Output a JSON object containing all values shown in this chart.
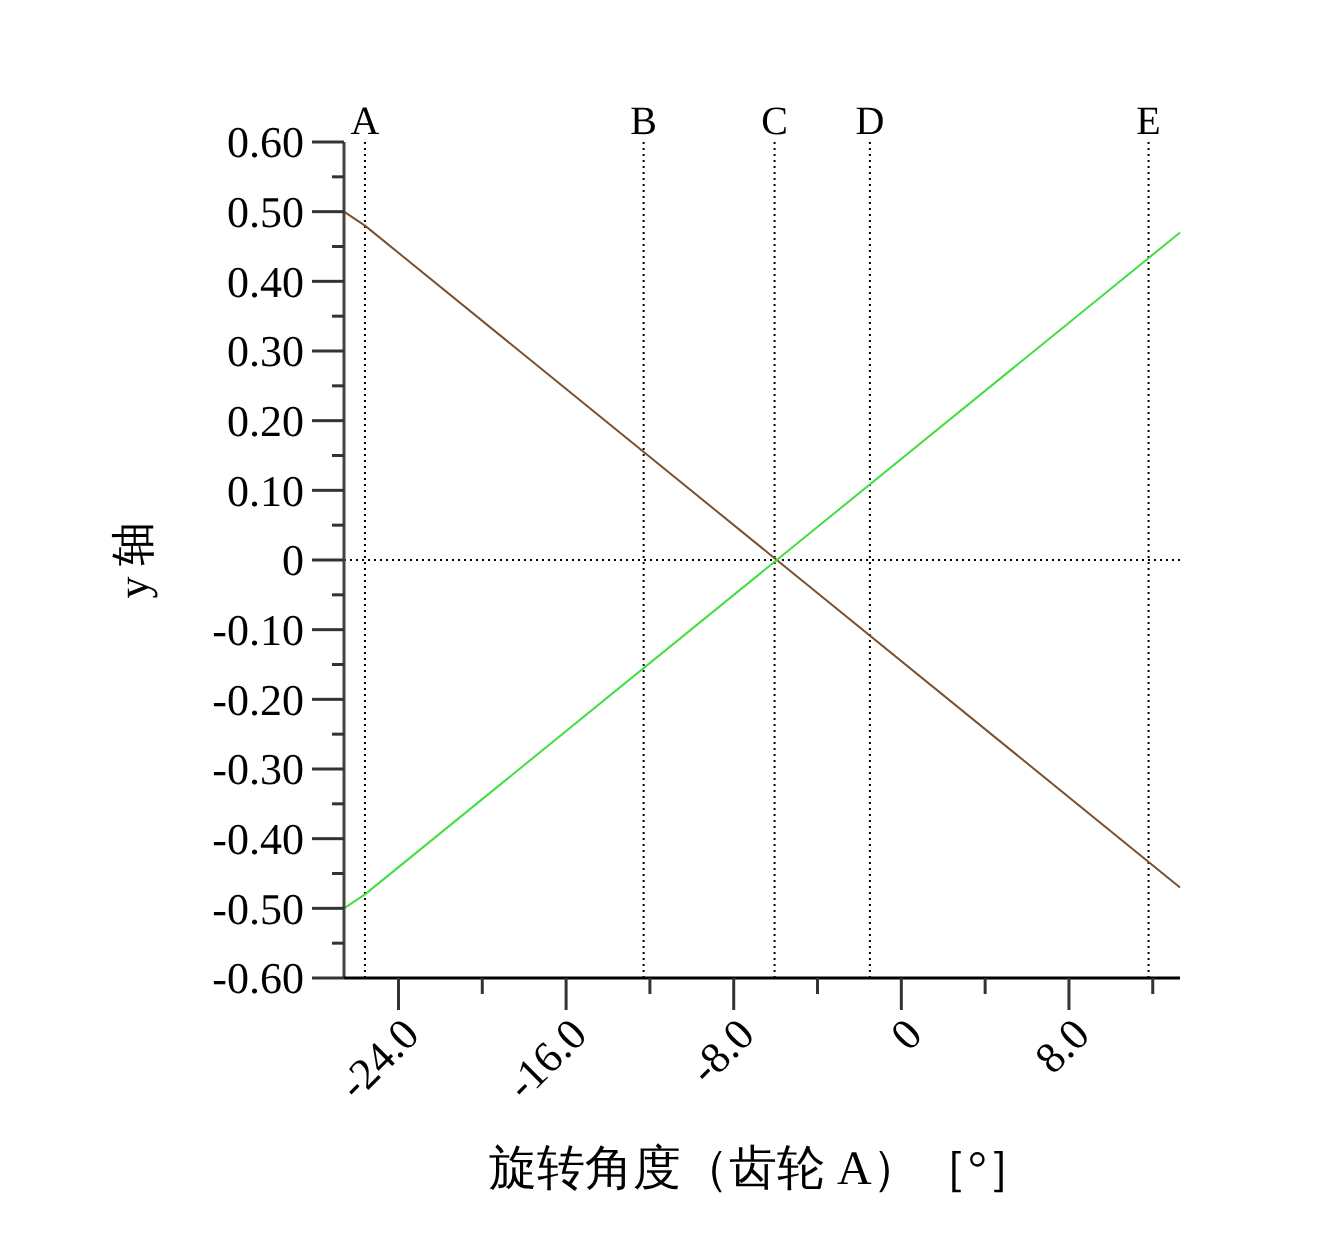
{
  "chart_data": {
    "type": "line",
    "xlabel": "旋转角度（齿轮 A）［°］",
    "ylabel": "y 轴",
    "xlim": [
      -26.6,
      13.3
    ],
    "ylim": [
      -0.6,
      0.6
    ],
    "xticks": [
      {
        "value": -24,
        "label": "-24.0"
      },
      {
        "value": -20,
        "label": null
      },
      {
        "value": -16,
        "label": "-16.0"
      },
      {
        "value": -12,
        "label": null
      },
      {
        "value": -8,
        "label": "-8.0"
      },
      {
        "value": -4,
        "label": null
      },
      {
        "value": 0,
        "label": "0"
      },
      {
        "value": 4,
        "label": null
      },
      {
        "value": 8,
        "label": "8.0"
      },
      {
        "value": 12,
        "label": null
      }
    ],
    "yticks": [
      {
        "value": 0.6,
        "label": "0.60"
      },
      {
        "value": 0.55,
        "label": null
      },
      {
        "value": 0.5,
        "label": "0.50"
      },
      {
        "value": 0.45,
        "label": null
      },
      {
        "value": 0.4,
        "label": "0.40"
      },
      {
        "value": 0.35,
        "label": null
      },
      {
        "value": 0.3,
        "label": "0.30"
      },
      {
        "value": 0.25,
        "label": null
      },
      {
        "value": 0.2,
        "label": "0.20"
      },
      {
        "value": 0.15,
        "label": null
      },
      {
        "value": 0.1,
        "label": "0.10"
      },
      {
        "value": 0.05,
        "label": null
      },
      {
        "value": 0,
        "label": "0"
      },
      {
        "value": -0.05,
        "label": null
      },
      {
        "value": -0.1,
        "label": "-0.10"
      },
      {
        "value": -0.15,
        "label": null
      },
      {
        "value": -0.2,
        "label": "-0.20"
      },
      {
        "value": -0.25,
        "label": null
      },
      {
        "value": -0.3,
        "label": "-0.30"
      },
      {
        "value": -0.35,
        "label": null
      },
      {
        "value": -0.4,
        "label": "-0.40"
      },
      {
        "value": -0.45,
        "label": null
      },
      {
        "value": -0.5,
        "label": "-0.50"
      },
      {
        "value": -0.55,
        "label": null
      },
      {
        "value": -0.6,
        "label": "-0.60"
      }
    ],
    "series": [
      {
        "color": "#7a5230",
        "x": [
          -26.6,
          -25.6,
          13.3
        ],
        "values": [
          0.5,
          0.48,
          -0.47
        ]
      },
      {
        "color": "#44dd44",
        "x": [
          -26.6,
          -25.6,
          13.3
        ],
        "values": [
          -0.5,
          -0.48,
          0.47
        ]
      }
    ],
    "ref_lines": [
      {
        "axis": "y",
        "value": 0,
        "label": null,
        "line_style": "dotted"
      },
      {
        "axis": "x",
        "value": -25.6,
        "label": "A",
        "line_style": "dotted"
      },
      {
        "axis": "x",
        "value": -12.3,
        "label": "B",
        "line_style": "dotted"
      },
      {
        "axis": "x",
        "value": -6.05,
        "label": "C",
        "line_style": "dotted"
      },
      {
        "axis": "x",
        "value": -1.5,
        "label": "D",
        "line_style": "dotted"
      },
      {
        "axis": "x",
        "value": 11.8,
        "label": "E",
        "line_style": "dotted"
      }
    ],
    "grid": false,
    "marker": "none",
    "line_style": "solid"
  }
}
